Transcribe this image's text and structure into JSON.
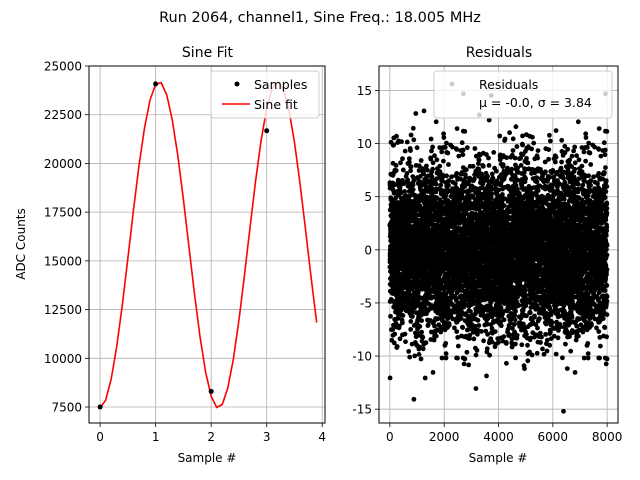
{
  "figure": {
    "suptitle": "Run 2064, channel1, Sine Freq.: 18.005 MHz"
  },
  "chart_data": [
    {
      "type": "line",
      "title": "Sine Fit",
      "xlabel": "Sample #",
      "ylabel": "ADC Counts",
      "xlim": [
        -0.2,
        4.05
      ],
      "ylim": [
        6680,
        25000
      ],
      "xticks": [
        0,
        1,
        2,
        3,
        4
      ],
      "yticks": [
        7500,
        10000,
        12500,
        15000,
        17500,
        20000,
        22500,
        25000
      ],
      "ytick_labels": [
        "7500",
        "10000",
        "12500",
        "15000",
        "17500",
        "20000",
        "22500",
        "25000"
      ],
      "grid": true,
      "legend_position": "top-right",
      "series": [
        {
          "name": "Samples",
          "kind": "scatter",
          "color": "#000000",
          "x": [
            0,
            1,
            2,
            3
          ],
          "y": [
            7500,
            24080,
            8300,
            21680
          ]
        },
        {
          "name": "Sine fit",
          "kind": "line",
          "color": "#ff0000",
          "fit": {
            "offset": 15825,
            "amplitude": 8375,
            "cycles_per_sample": 0.4683,
            "phase_rad": -1.554,
            "x_start": 0,
            "x_end": 3.9,
            "step": 0.1
          }
        }
      ]
    },
    {
      "type": "scatter",
      "title": "Residuals",
      "xlabel": "Sample #",
      "xlim": [
        -400,
        8400
      ],
      "ylim": [
        -16.3,
        17.3
      ],
      "xticks": [
        0,
        2000,
        4000,
        6000,
        8000
      ],
      "yticks": [
        -15,
        -10,
        -5,
        0,
        5,
        10,
        15
      ],
      "grid": true,
      "legend_position": "top-right",
      "series": [
        {
          "name": "Residuals",
          "color": "#000000",
          "n_points": 8000,
          "mean": -0.0,
          "sigma": 3.84,
          "min": -15.2,
          "max": 15.0
        }
      ],
      "legend_stats_label": "μ = -0.0, σ = 3.84"
    }
  ]
}
